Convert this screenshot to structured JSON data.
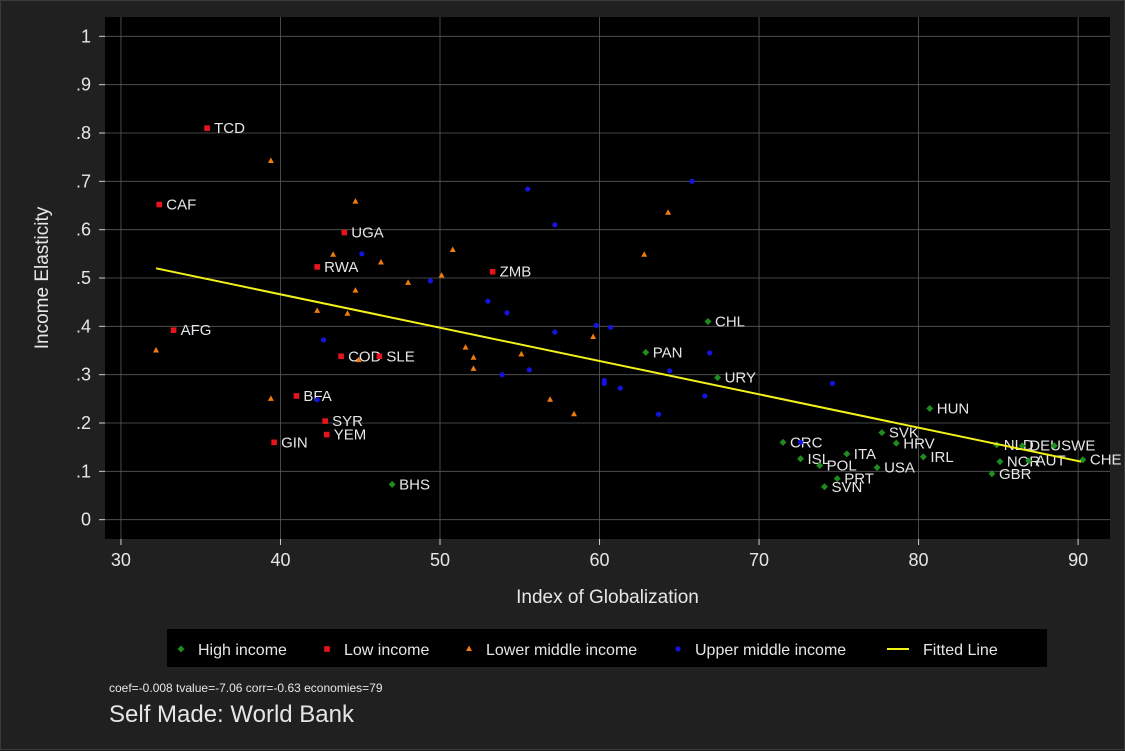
{
  "chart_data": {
    "type": "scatter",
    "xlabel": "Index of Globalization",
    "ylabel": "Income Elasticity",
    "xlim": [
      29,
      92
    ],
    "ylim": [
      -0.04,
      1.04
    ],
    "x_ticks": [
      30,
      40,
      50,
      60,
      70,
      80,
      90
    ],
    "y_ticks": [
      0,
      0.1,
      0.2,
      0.3,
      0.4,
      0.5,
      0.6,
      0.7,
      0.8,
      0.9,
      1
    ],
    "y_tick_labels": [
      "0",
      ".1",
      ".2",
      ".3",
      ".4",
      ".5",
      ".6",
      ".7",
      ".8",
      ".9",
      "1"
    ],
    "grid": true,
    "legend_position": "bottom",
    "series": [
      {
        "name": "High income",
        "color": "#1e8c1e",
        "marker": "diamond",
        "points": [
          {
            "x": 66.8,
            "y": 0.41,
            "label": "CHL"
          },
          {
            "x": 62.9,
            "y": 0.346,
            "label": "PAN"
          },
          {
            "x": 67.4,
            "y": 0.294,
            "label": "URY"
          },
          {
            "x": 47.0,
            "y": 0.073,
            "label": "BHS"
          },
          {
            "x": 80.7,
            "y": 0.23,
            "label": "HUN"
          },
          {
            "x": 77.7,
            "y": 0.18,
            "label": "SVK"
          },
          {
            "x": 78.6,
            "y": 0.158,
            "label": "HRV"
          },
          {
            "x": 71.5,
            "y": 0.16,
            "label": "CRC"
          },
          {
            "x": 72.6,
            "y": 0.126,
            "label": "ISL"
          },
          {
            "x": 75.5,
            "y": 0.136,
            "label": "ITA"
          },
          {
            "x": 73.8,
            "y": 0.112,
            "label": "POL"
          },
          {
            "x": 77.4,
            "y": 0.108,
            "label": "USA"
          },
          {
            "x": 80.3,
            "y": 0.13,
            "label": "IRL"
          },
          {
            "x": 74.9,
            "y": 0.085,
            "label": "PRT"
          },
          {
            "x": 74.1,
            "y": 0.068,
            "label": "SVN"
          },
          {
            "x": 84.9,
            "y": 0.155,
            "label": "NLD"
          },
          {
            "x": 86.5,
            "y": 0.153,
            "label": "DEU"
          },
          {
            "x": 88.5,
            "y": 0.153,
            "label": "SWE"
          },
          {
            "x": 85.1,
            "y": 0.12,
            "label": "NOR"
          },
          {
            "x": 86.9,
            "y": 0.122,
            "label": "AUT"
          },
          {
            "x": 84.6,
            "y": 0.095,
            "label": "GBR"
          },
          {
            "x": 90.3,
            "y": 0.124,
            "label": "CHE"
          }
        ]
      },
      {
        "name": "Low income",
        "color": "#e8141c",
        "marker": "square",
        "points": [
          {
            "x": 35.4,
            "y": 0.81,
            "label": "TCD"
          },
          {
            "x": 32.4,
            "y": 0.652,
            "label": "CAF"
          },
          {
            "x": 44.0,
            "y": 0.594,
            "label": "UGA"
          },
          {
            "x": 42.3,
            "y": 0.523,
            "label": "RWA"
          },
          {
            "x": 53.3,
            "y": 0.513,
            "label": "ZMB"
          },
          {
            "x": 33.3,
            "y": 0.392,
            "label": "AFG"
          },
          {
            "x": 43.8,
            "y": 0.338,
            "label": "COD"
          },
          {
            "x": 46.2,
            "y": 0.338,
            "label": "SLE"
          },
          {
            "x": 41.0,
            "y": 0.256,
            "label": "BFA"
          },
          {
            "x": 42.8,
            "y": 0.204,
            "label": "SYR"
          },
          {
            "x": 42.9,
            "y": 0.176,
            "label": "YEM"
          },
          {
            "x": 39.6,
            "y": 0.16,
            "label": "GIN"
          }
        ]
      },
      {
        "name": "Lower middle income",
        "color": "#f07c10",
        "marker": "triangle",
        "points": [
          {
            "x": 39.4,
            "y": 0.742
          },
          {
            "x": 32.2,
            "y": 0.35
          },
          {
            "x": 39.4,
            "y": 0.25
          },
          {
            "x": 44.7,
            "y": 0.658
          },
          {
            "x": 43.3,
            "y": 0.548
          },
          {
            "x": 46.3,
            "y": 0.532
          },
          {
            "x": 44.7,
            "y": 0.474
          },
          {
            "x": 42.3,
            "y": 0.432
          },
          {
            "x": 44.2,
            "y": 0.426
          },
          {
            "x": 44.9,
            "y": 0.33
          },
          {
            "x": 48.0,
            "y": 0.49
          },
          {
            "x": 50.1,
            "y": 0.505
          },
          {
            "x": 50.8,
            "y": 0.558
          },
          {
            "x": 51.6,
            "y": 0.356
          },
          {
            "x": 52.1,
            "y": 0.335
          },
          {
            "x": 52.1,
            "y": 0.312
          },
          {
            "x": 55.1,
            "y": 0.342
          },
          {
            "x": 56.9,
            "y": 0.248
          },
          {
            "x": 58.4,
            "y": 0.218
          },
          {
            "x": 59.6,
            "y": 0.378
          },
          {
            "x": 62.8,
            "y": 0.548
          },
          {
            "x": 64.3,
            "y": 0.635
          }
        ]
      },
      {
        "name": "Upper middle income",
        "color": "#1414e0",
        "marker": "circle",
        "points": [
          {
            "x": 55.5,
            "y": 0.684
          },
          {
            "x": 65.8,
            "y": 0.7
          },
          {
            "x": 57.2,
            "y": 0.61
          },
          {
            "x": 45.1,
            "y": 0.55
          },
          {
            "x": 49.4,
            "y": 0.494
          },
          {
            "x": 53.0,
            "y": 0.452
          },
          {
            "x": 54.2,
            "y": 0.428
          },
          {
            "x": 42.7,
            "y": 0.372
          },
          {
            "x": 42.3,
            "y": 0.248
          },
          {
            "x": 57.2,
            "y": 0.388
          },
          {
            "x": 59.8,
            "y": 0.402
          },
          {
            "x": 60.7,
            "y": 0.398
          },
          {
            "x": 66.9,
            "y": 0.345
          },
          {
            "x": 53.9,
            "y": 0.3
          },
          {
            "x": 55.6,
            "y": 0.31
          },
          {
            "x": 60.3,
            "y": 0.288
          },
          {
            "x": 60.3,
            "y": 0.282
          },
          {
            "x": 61.3,
            "y": 0.272
          },
          {
            "x": 64.4,
            "y": 0.308
          },
          {
            "x": 66.6,
            "y": 0.256
          },
          {
            "x": 63.7,
            "y": 0.218
          },
          {
            "x": 74.6,
            "y": 0.282
          },
          {
            "x": 72.6,
            "y": 0.16
          }
        ]
      }
    ],
    "fitted_line": {
      "name": "Fitted Line",
      "color": "#f2f21a",
      "points": [
        {
          "x": 32.2,
          "y": 0.52
        },
        {
          "x": 90.2,
          "y": 0.12
        }
      ]
    }
  },
  "stats_note": "coef=-0.008 tvalue=-7.06 corr=-0.63 economies=79",
  "source_note": "Self Made: World Bank"
}
